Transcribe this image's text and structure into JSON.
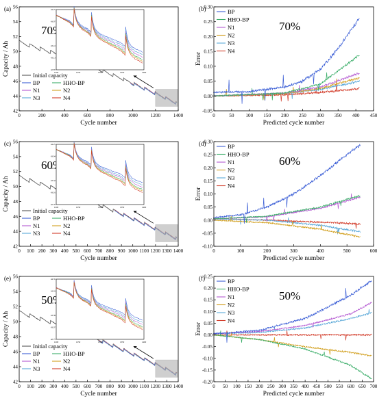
{
  "figure": {
    "panels": [
      "(a)",
      "(b)",
      "(c)",
      "(d)",
      "(e)",
      "(f)"
    ]
  },
  "colors": {
    "initial": "#555555",
    "BP": "#3c5fd6",
    "HHO-BP": "#3cae6a",
    "N1": "#b45ad2",
    "N2": "#d2a020",
    "N3": "#5aa8d8",
    "N4": "#d23c2a",
    "box": "#b0b0b0"
  },
  "chart_data": [
    {
      "panel": "(a)",
      "type": "line",
      "annotation": "70%",
      "xlabel": "Cycle number",
      "ylabel": "Capacity / Ah",
      "xlim": [
        0,
        1400
      ],
      "ylim": [
        42,
        56
      ],
      "xticks": [
        "0",
        "200",
        "400",
        "600",
        "800",
        "1000",
        "1200",
        "1400"
      ],
      "yticks": [
        "42",
        "44",
        "46",
        "48",
        "50",
        "52",
        "54",
        "56"
      ],
      "legend": [
        "Initial capacity",
        "BP",
        "HHO-BP",
        "N1",
        "N2",
        "N3",
        "N4"
      ],
      "legend_position": "lower-left",
      "pred_start": 980,
      "inset": {
        "xlim": [
          1200,
          1400
        ],
        "ylim": [
          42.85,
          44.25
        ],
        "spikes": [
          1240,
          1280,
          1358
        ]
      },
      "series": [
        {
          "name": "Initial capacity",
          "x": [
            0,
            1400
          ],
          "y": [
            51.2,
            42.9
          ]
        }
      ]
    },
    {
      "panel": "(b)",
      "type": "line",
      "annotation": "70%",
      "xlabel": "Predicted cycle number",
      "ylabel": "Error",
      "xlim": [
        0,
        450
      ],
      "ylim": [
        -0.05,
        0.3
      ],
      "xticks": [
        "0",
        "50",
        "100",
        "150",
        "200",
        "250",
        "300",
        "350",
        "400",
        "450"
      ],
      "yticks": [
        "-0.05",
        "0.00",
        "0.05",
        "0.10",
        "0.15",
        "0.20",
        "0.25",
        "0.30"
      ],
      "legend": [
        "BP",
        "HHO-BP",
        "N1",
        "N2",
        "N3",
        "N4"
      ],
      "legend_position": "top-left",
      "series": [
        {
          "name": "BP",
          "x": [
            0,
            100,
            200,
            250,
            300,
            350,
            412
          ],
          "y": [
            0.012,
            0.015,
            0.03,
            0.05,
            0.09,
            0.16,
            0.265
          ]
        },
        {
          "name": "HHO-BP",
          "x": [
            0,
            200,
            300,
            412
          ],
          "y": [
            0.0,
            0.01,
            0.04,
            0.14
          ]
        },
        {
          "name": "N1",
          "x": [
            0,
            200,
            300,
            412
          ],
          "y": [
            0.0,
            0.01,
            0.03,
            0.078
          ]
        },
        {
          "name": "N2",
          "x": [
            0,
            200,
            300,
            412
          ],
          "y": [
            0.0,
            0.008,
            0.025,
            0.062
          ]
        },
        {
          "name": "N3",
          "x": [
            0,
            200,
            300,
            412
          ],
          "y": [
            0.0,
            0.008,
            0.022,
            0.05
          ]
        },
        {
          "name": "N4",
          "x": [
            0,
            200,
            300,
            412
          ],
          "y": [
            0.0,
            0.004,
            0.012,
            0.025
          ]
        }
      ]
    },
    {
      "panel": "(c)",
      "type": "line",
      "annotation": "60%",
      "xlabel": "Cycle number",
      "ylabel": "Capacity / Ah",
      "xlim": [
        0,
        1400
      ],
      "ylim": [
        42,
        56
      ],
      "xticks": [
        "0",
        "100",
        "200",
        "300",
        "400",
        "500",
        "600",
        "700",
        "800",
        "900",
        "1000",
        "1100",
        "1200",
        "1300",
        "1400"
      ],
      "yticks": [
        "42",
        "44",
        "46",
        "48",
        "50",
        "52",
        "54",
        "56"
      ],
      "legend": [
        "Initial capacity",
        "BP",
        "HHO-BP",
        "N1",
        "N2",
        "N3",
        "N4"
      ],
      "legend_position": "lower-left",
      "pred_start": 840,
      "inset": {
        "xlim": [
          1200,
          1400
        ],
        "ylim": [
          42.7,
          44.25
        ],
        "spikes": [
          1240,
          1280,
          1358
        ]
      },
      "series": [
        {
          "name": "Initial capacity",
          "x": [
            0,
            1400
          ],
          "y": [
            51.2,
            42.9
          ]
        }
      ]
    },
    {
      "panel": "(d)",
      "type": "line",
      "annotation": "60%",
      "xlabel": "Predicted cycle number",
      "ylabel": "Error",
      "xlim": [
        0,
        600
      ],
      "ylim": [
        -0.1,
        0.3
      ],
      "xticks": [
        "0",
        "100",
        "200",
        "300",
        "400",
        "500",
        "600"
      ],
      "yticks": [
        "-0.10",
        "-0.05",
        "0.00",
        "0.05",
        "0.10",
        "0.15",
        "0.20",
        "0.25",
        "0.30"
      ],
      "legend": [
        "BP",
        "HHO-BP",
        "N1",
        "N2",
        "N3",
        "N4"
      ],
      "legend_position": "top-left",
      "series": [
        {
          "name": "BP",
          "x": [
            0,
            100,
            200,
            300,
            400,
            500,
            552
          ],
          "y": [
            0.01,
            0.02,
            0.05,
            0.1,
            0.17,
            0.25,
            0.29
          ]
        },
        {
          "name": "HHO-BP",
          "x": [
            0,
            200,
            400,
            552
          ],
          "y": [
            0.005,
            0.015,
            0.05,
            0.095
          ]
        },
        {
          "name": "N1",
          "x": [
            0,
            200,
            400,
            552
          ],
          "y": [
            0.005,
            0.013,
            0.045,
            0.088
          ]
        },
        {
          "name": "N2",
          "x": [
            0,
            200,
            400,
            552
          ],
          "y": [
            0.0,
            -0.01,
            -0.035,
            -0.065
          ]
        },
        {
          "name": "N3",
          "x": [
            0,
            200,
            400,
            552
          ],
          "y": [
            0.005,
            0.0,
            -0.02,
            -0.045
          ]
        },
        {
          "name": "N4",
          "x": [
            0,
            200,
            400,
            552
          ],
          "y": [
            0.005,
            0.0,
            -0.008,
            -0.015
          ]
        }
      ]
    },
    {
      "panel": "(e)",
      "type": "line",
      "annotation": "50%",
      "xlabel": "Cycle number",
      "ylabel": "Capacity / Ah",
      "xlim": [
        0,
        1400
      ],
      "ylim": [
        42,
        56
      ],
      "xticks": [
        "0",
        "100",
        "200",
        "300",
        "400",
        "500",
        "600",
        "700",
        "800",
        "900",
        "1000",
        "1100",
        "1200",
        "1300",
        "1400"
      ],
      "yticks": [
        "42",
        "44",
        "46",
        "48",
        "50",
        "52",
        "54",
        "56"
      ],
      "legend": [
        "Initial capacity",
        "BP",
        "HHO-BP",
        "N1",
        "N2",
        "N3",
        "N4"
      ],
      "legend_position": "lower-left",
      "pred_start": 700,
      "inset": {
        "xlim": [
          1200,
          1400
        ],
        "ylim": [
          42.75,
          44.35
        ],
        "spikes": [
          1240,
          1280,
          1358
        ]
      },
      "series": [
        {
          "name": "Initial capacity",
          "x": [
            0,
            1400
          ],
          "y": [
            51.2,
            42.9
          ]
        }
      ]
    },
    {
      "panel": "(f)",
      "type": "line",
      "annotation": "50%",
      "xlabel": "Predicted cycle number",
      "ylabel": "Error",
      "xlim": [
        0,
        700
      ],
      "ylim": [
        -0.2,
        0.25
      ],
      "xticks": [
        "0",
        "50",
        "100",
        "150",
        "200",
        "250",
        "300",
        "350",
        "400",
        "450",
        "500",
        "550",
        "600",
        "650",
        "700"
      ],
      "yticks": [
        "-0.20",
        "-0.15",
        "-0.10",
        "-0.05",
        "0.00",
        "0.05",
        "0.10",
        "0.15",
        "0.20",
        "0.25"
      ],
      "legend": [
        "BP",
        "HHO-BP",
        "N1",
        "N2",
        "N3",
        "N4"
      ],
      "legend_position": "top-left",
      "series": [
        {
          "name": "BP",
          "x": [
            0,
            200,
            400,
            600,
            695
          ],
          "y": [
            0.005,
            0.02,
            0.07,
            0.17,
            0.235
          ]
        },
        {
          "name": "HHO-BP",
          "x": [
            0,
            200,
            400,
            600,
            695
          ],
          "y": [
            0.0,
            -0.02,
            -0.06,
            -0.13,
            -0.19
          ]
        },
        {
          "name": "N1",
          "x": [
            0,
            200,
            400,
            600,
            695
          ],
          "y": [
            0.005,
            0.015,
            0.04,
            0.09,
            0.14
          ]
        },
        {
          "name": "N2",
          "x": [
            0,
            200,
            400,
            600,
            695
          ],
          "y": [
            0.0,
            -0.02,
            -0.05,
            -0.075,
            -0.09
          ]
        },
        {
          "name": "N3",
          "x": [
            0,
            200,
            400,
            600,
            695
          ],
          "y": [
            0.005,
            0.01,
            0.03,
            0.07,
            0.095
          ]
        },
        {
          "name": "N4",
          "x": [
            0,
            200,
            400,
            600,
            695
          ],
          "y": [
            0.0,
            0.0,
            0.0,
            0.0,
            0.0
          ]
        }
      ]
    }
  ]
}
